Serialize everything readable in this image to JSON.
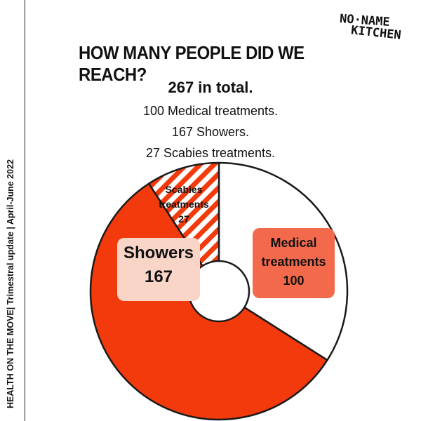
{
  "sidebar": {
    "text": "HEALTH ON THE MOVE| Trimestral update | April-June 2022"
  },
  "logo": {
    "line1": "NO·NAME",
    "line2": "KITCHEN"
  },
  "header": {
    "title": "HOW MANY PEOPLE DID WE REACH?"
  },
  "summary": {
    "total": "267 in total.",
    "lines": [
      "100 Medical treatments.",
      "167 Showers.",
      "27 Scabies treatments."
    ]
  },
  "chart_data": {
    "type": "pie",
    "categories": [
      "Medical treatments",
      "Showers",
      "Scabies treatments"
    ],
    "values": [
      100,
      167,
      27
    ],
    "labels": [
      {
        "line1": "Medical",
        "line2": "treatments",
        "line3": "100"
      },
      {
        "line1": "Showers",
        "line2": "167"
      },
      {
        "line1": "Scabies",
        "line2": "treatments",
        "line3": "27"
      }
    ],
    "donut": true,
    "colors": {
      "medical": "#ffffff",
      "showers": "#f23a0c",
      "scabies_hatch": "#f23a0c",
      "outline": "#1a1a1a"
    }
  }
}
